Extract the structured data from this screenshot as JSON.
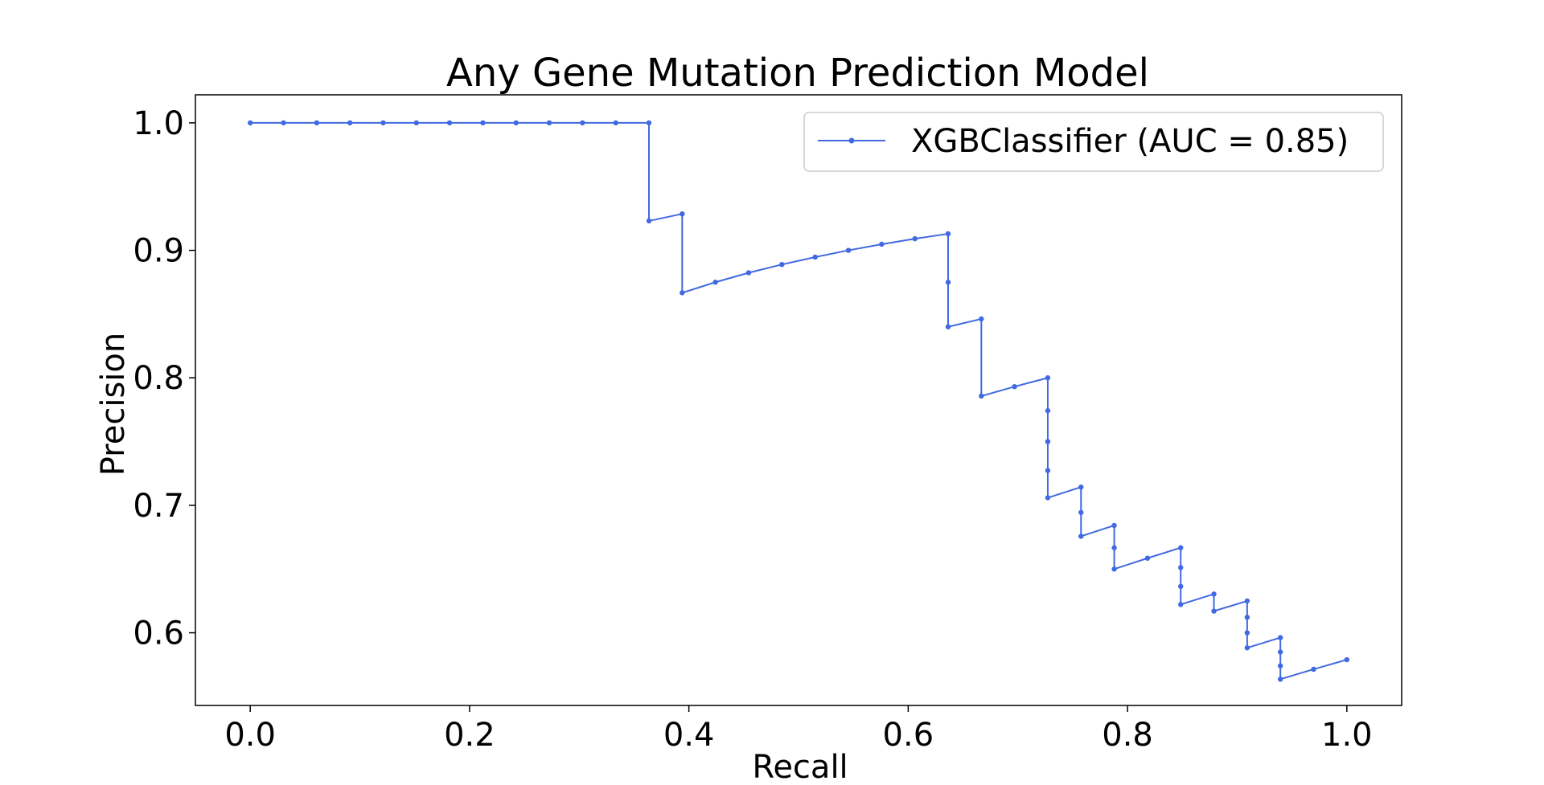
{
  "chart_data": {
    "type": "line",
    "title": "Any Gene Mutation Prediction Model",
    "xlabel": "Recall",
    "ylabel": "Precision",
    "xlim": [
      -0.05,
      1.05
    ],
    "ylim": [
      0.543,
      1.022
    ],
    "x_ticks": [
      "0.0",
      "0.2",
      "0.4",
      "0.6",
      "0.8",
      "1.0"
    ],
    "x_tick_values": [
      0.0,
      0.2,
      0.4,
      0.6,
      0.8,
      1.0
    ],
    "y_ticks": [
      "0.6",
      "0.7",
      "0.8",
      "0.9",
      "1.0"
    ],
    "y_tick_values": [
      0.6,
      0.7,
      0.8,
      0.9,
      1.0
    ],
    "grid": false,
    "legend_position": "top-right",
    "series": [
      {
        "name": "XGBClassifier (AUC = 0.85)",
        "color": "#4169e1",
        "step": "post",
        "x": [
          0.0,
          0.0303,
          0.0606,
          0.0909,
          0.1212,
          0.1515,
          0.1818,
          0.2121,
          0.2424,
          0.2727,
          0.303,
          0.3333,
          0.3636,
          0.3636,
          0.3939,
          0.3939,
          0.4242,
          0.4545,
          0.4848,
          0.5152,
          0.5455,
          0.5758,
          0.6061,
          0.6364,
          0.6364,
          0.6364,
          0.6667,
          0.6667,
          0.697,
          0.7273,
          0.7273,
          0.7273,
          0.7273,
          0.7273,
          0.7576,
          0.7576,
          0.7576,
          0.7879,
          0.7879,
          0.7879,
          0.8182,
          0.8485,
          0.8485,
          0.8485,
          0.8485,
          0.8788,
          0.8788,
          0.9091,
          0.9091,
          0.9091,
          0.9091,
          0.9394,
          0.9394,
          0.9394,
          0.9394,
          0.9697,
          1.0
        ],
        "y": [
          1.0,
          1.0,
          1.0,
          1.0,
          1.0,
          1.0,
          1.0,
          1.0,
          1.0,
          1.0,
          1.0,
          1.0,
          1.0,
          0.9231,
          0.9286,
          0.8667,
          0.875,
          0.8824,
          0.8889,
          0.8947,
          0.9,
          0.9048,
          0.9091,
          0.913,
          0.875,
          0.84,
          0.8462,
          0.7857,
          0.7931,
          0.8,
          0.7742,
          0.75,
          0.7273,
          0.7059,
          0.7143,
          0.6944,
          0.6757,
          0.6842,
          0.6667,
          0.65,
          0.6585,
          0.6667,
          0.6512,
          0.6364,
          0.6222,
          0.6304,
          0.617,
          0.625,
          0.6122,
          0.6,
          0.5882,
          0.5962,
          0.5849,
          0.5741,
          0.5636,
          0.5714,
          0.5789
        ]
      }
    ]
  }
}
